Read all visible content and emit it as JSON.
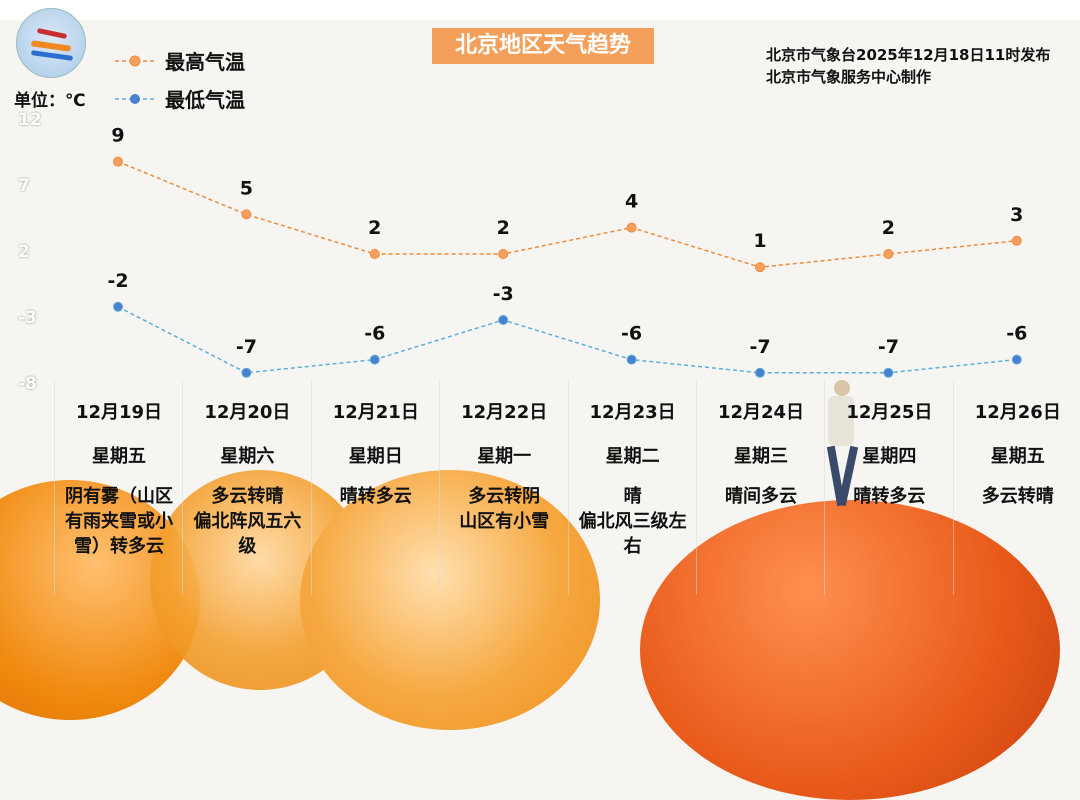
{
  "title": "北京地区天气趋势",
  "publisher": [
    "北京市气象台2025年12月18日11时发布",
    "北京市气象服务中心制作"
  ],
  "unit_label": "单位：℃",
  "colors": {
    "high": "#f08a3c",
    "low": "#4a90d9",
    "title_bg": "#f5a05a"
  },
  "chart_data": {
    "type": "line",
    "title": "北京地区天气趋势",
    "ylabel": "单位：℃",
    "yticks": [
      12,
      7,
      2,
      -3,
      -8
    ],
    "ylim": [
      -8,
      12
    ],
    "grid": false,
    "legend_placement": "top-left",
    "categories": [
      "12月19日",
      "12月20日",
      "12月21日",
      "12月22日",
      "12月23日",
      "12月24日",
      "12月25日",
      "12月26日"
    ],
    "series": [
      {
        "name": "最高气温",
        "values": [
          9,
          5,
          2,
          2,
          4,
          1,
          2,
          3
        ]
      },
      {
        "name": "最低气温",
        "values": [
          -2,
          -7,
          -6,
          -3,
          -6,
          -7,
          -7,
          -6
        ]
      }
    ]
  },
  "days": [
    {
      "date": "12月19日",
      "weekday": "星期五",
      "weather": "阴有雾（山区有雨夹雪或小雪）转多云"
    },
    {
      "date": "12月20日",
      "weekday": "星期六",
      "weather": "多云转晴\n偏北阵风五六级"
    },
    {
      "date": "12月21日",
      "weekday": "星期日",
      "weather": "晴转多云"
    },
    {
      "date": "12月22日",
      "weekday": "星期一",
      "weather": "多云转阴\n山区有小雪"
    },
    {
      "date": "12月23日",
      "weekday": "星期二",
      "weather": "晴\n偏北风三级左右"
    },
    {
      "date": "12月24日",
      "weekday": "星期三",
      "weather": "晴间多云"
    },
    {
      "date": "12月25日",
      "weekday": "星期四",
      "weather": "晴转多云"
    },
    {
      "date": "12月26日",
      "weekday": "星期五",
      "weather": "多云转晴"
    }
  ]
}
